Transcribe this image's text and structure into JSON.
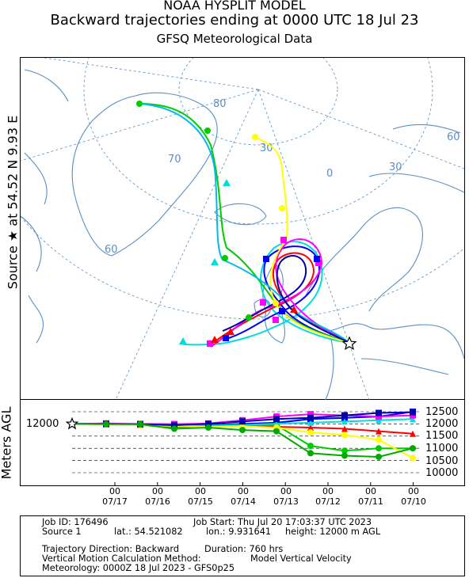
{
  "header": {
    "model": "NOAA HYSPLIT MODEL",
    "title": "Backward trajectories ending at 0000 UTC 18 Jul 23",
    "subtitle": "GFSQ Meteorological Data"
  },
  "map": {
    "source_label": "Source ★ at 54.52 N 9.93 E",
    "graticule_labels": [
      "80",
      "70",
      "60",
      "30",
      "0",
      "30",
      "60"
    ],
    "colors": {
      "land": "#5b8ec4",
      "graticule": "#5b8ec4"
    }
  },
  "chart_data": {
    "type": "line",
    "title": "",
    "ylabel": "Meters AGL",
    "source_height_label": "12000",
    "y_ticks": [
      "12500",
      "12000",
      "11500",
      "11000",
      "10500",
      "10000"
    ],
    "ylim": [
      10000,
      12500
    ],
    "x_ticks_top": [
      "00",
      "00",
      "00",
      "00",
      "00",
      "00",
      "00",
      "00"
    ],
    "x_ticks_bottom": [
      "07/17",
      "07/16",
      "07/15",
      "07/14",
      "07/13",
      "07/12",
      "07/11",
      "07/10"
    ],
    "x_hours_back": [
      0,
      760
    ],
    "series": [
      {
        "color": "#0000ff",
        "marker": "square",
        "values": [
          12000,
          12000,
          11980,
          11990,
          11950,
          12000,
          12050,
          12200,
          12250,
          12300,
          12500
        ]
      },
      {
        "color": "#ff0000",
        "marker": "triangle",
        "values": [
          12000,
          11990,
          11970,
          11950,
          11920,
          11900,
          11880,
          11850,
          11800,
          11700,
          11600
        ]
      },
      {
        "color": "#00cc00",
        "marker": "circle",
        "values": [
          12000,
          12020,
          11950,
          11870,
          11900,
          11950,
          11950,
          11100,
          10900,
          11000,
          11000
        ]
      },
      {
        "color": "#00dddd",
        "marker": "triangle",
        "values": [
          12000,
          12010,
          11980,
          11950,
          11930,
          11960,
          12010,
          12050,
          12100,
          12150,
          12200
        ]
      },
      {
        "color": "#ff00ff",
        "marker": "square",
        "values": [
          12000,
          12020,
          12000,
          11990,
          12020,
          12150,
          12300,
          12400,
          12350,
          12300,
          12350
        ]
      },
      {
        "color": "#ffff00",
        "marker": "circle",
        "values": [
          12000,
          11980,
          11950,
          11920,
          11880,
          11900,
          11850,
          11650,
          11550,
          11350,
          10600
        ]
      },
      {
        "color": "#0000aa",
        "marker": "square",
        "values": [
          12000,
          12000,
          11990,
          11950,
          12000,
          12100,
          12200,
          12250,
          12350,
          12450,
          12480
        ]
      },
      {
        "color": "#00aa00",
        "marker": "circle",
        "values": [
          12000,
          11990,
          11990,
          11800,
          11850,
          11750,
          11700,
          10800,
          10700,
          10650,
          11000
        ]
      }
    ]
  },
  "footer": {
    "job_id": "Job ID: 176496",
    "job_start": "Job Start: Thu Jul 20 17:03:37 UTC 2023",
    "source": "Source 1",
    "lat": "lat.: 54.521082",
    "lon": "lon.: 9.931641",
    "height": "height: 12000 m AGL",
    "direction": "Trajectory Direction: Backward",
    "duration": "Duration: 760 hrs",
    "vertical_motion": "Vertical Motion Calculation Method:",
    "vertical_motion_value": "Model Vertical Velocity",
    "meteorology": "Meteorology: 0000Z 18 Jul 2023 - GFS0p25"
  }
}
